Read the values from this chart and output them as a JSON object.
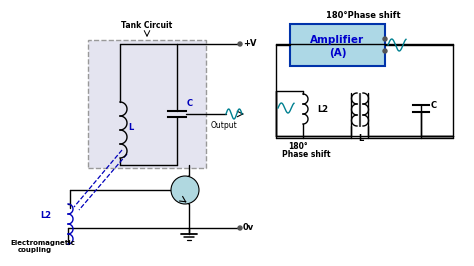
{
  "bg_color": "#ffffff",
  "text_color": "#000000",
  "blue_color": "#0000bb",
  "dark_blue": "#0000cc",
  "teal_color": "#008090",
  "gray_color": "#808080",
  "tank_box_color": "#e0e0ec",
  "amp_box_color": "#add8e6",
  "tank_label": "Tank Circuit",
  "output_label": "Output",
  "pv_label": "+V",
  "ov_label": "0v",
  "l2_label": "L2",
  "l_label": "L",
  "c_label": "C",
  "em_label1": "Electromagnetic",
  "em_label2": "coupling",
  "phase_top": "180°Phase shift",
  "amp_label1": "Amplifier",
  "amp_label2": "(A)",
  "phase_bot1": "180°",
  "phase_bot2": "Phase shift",
  "l2_right": "L2",
  "l_right": "L",
  "c_right": "C"
}
